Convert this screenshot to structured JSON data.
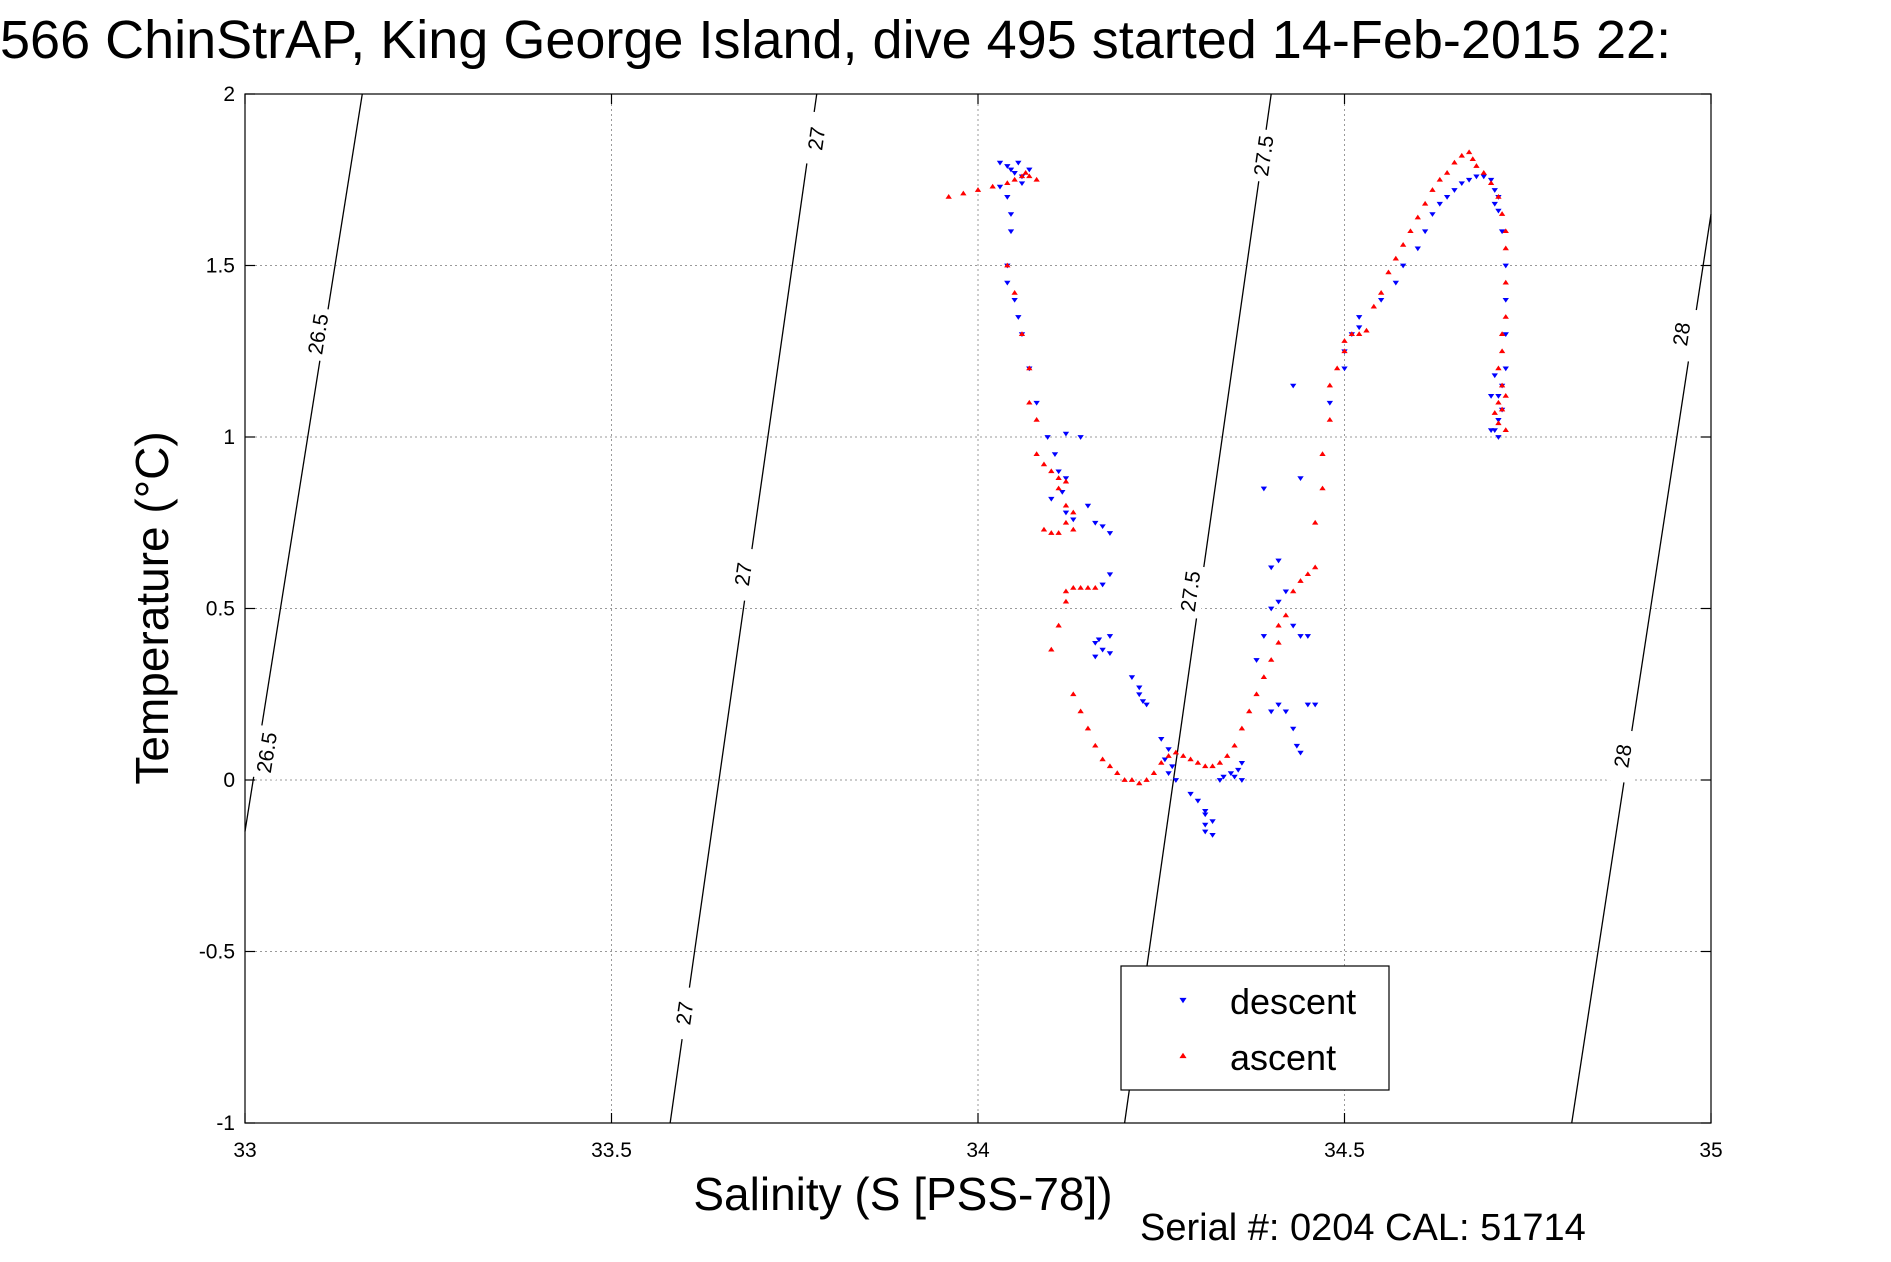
{
  "chart_data": {
    "type": "scatter",
    "title": "566 ChinStrAP, King George Island, dive 495 started 14-Feb-2015 22:",
    "xlabel": "Salinity (S [PSS-78])",
    "ylabel": "Temperature (°C)",
    "xlim": [
      33,
      35
    ],
    "ylim": [
      -1,
      2
    ],
    "x_ticks": [
      33,
      33.5,
      34,
      34.5,
      35
    ],
    "x_tick_labels": [
      "33",
      "33.5",
      "34",
      "34.5",
      "35"
    ],
    "y_ticks": [
      -1,
      -0.5,
      0,
      0.5,
      1,
      1.5,
      2
    ],
    "y_tick_labels": [
      "-1",
      "-0.5",
      "0",
      "0.5",
      "1",
      "1.5",
      "2"
    ],
    "grid": true,
    "legend": "bottom-center",
    "footer": "Serial #: 0204  CAL: 51714",
    "contours": [
      {
        "label": "26.5",
        "x": [
          33.0,
          33.16
        ],
        "y": [
          -0.15,
          2.0
        ],
        "labels_at": [
          [
            33.03,
            0.08
          ],
          [
            33.1,
            1.3
          ]
        ]
      },
      {
        "label": "27",
        "x": [
          33.58,
          33.78
        ],
        "y": [
          -1.0,
          2.0
        ],
        "labels_at": [
          [
            33.6,
            -0.68
          ],
          [
            33.68,
            0.6
          ],
          [
            33.78,
            1.87
          ]
        ]
      },
      {
        "label": "27.5",
        "x": [
          34.2,
          34.4
        ],
        "y": [
          -1.0,
          2.0
        ],
        "labels_at": [
          [
            34.29,
            0.55
          ],
          [
            34.39,
            1.82
          ]
        ]
      },
      {
        "label": "28",
        "x": [
          34.81,
          35.0
        ],
        "y": [
          -1.0,
          1.65
        ],
        "labels_at": [
          [
            34.88,
            0.07
          ],
          [
            34.96,
            1.3
          ]
        ]
      }
    ],
    "series": [
      {
        "name": "descent",
        "color": "#0000ff",
        "marker": "triangle-down",
        "points": [
          [
            34.03,
            1.8
          ],
          [
            34.04,
            1.79
          ],
          [
            34.05,
            1.77
          ],
          [
            34.06,
            1.76
          ],
          [
            34.06,
            1.74
          ],
          [
            34.045,
            1.78
          ],
          [
            34.055,
            1.8
          ],
          [
            34.07,
            1.78
          ],
          [
            34.03,
            1.73
          ],
          [
            34.04,
            1.7
          ],
          [
            34.045,
            1.65
          ],
          [
            34.045,
            1.6
          ],
          [
            34.04,
            1.5
          ],
          [
            34.04,
            1.45
          ],
          [
            34.05,
            1.4
          ],
          [
            34.055,
            1.35
          ],
          [
            34.06,
            1.3
          ],
          [
            34.07,
            1.2
          ],
          [
            34.08,
            1.1
          ],
          [
            34.095,
            1.0
          ],
          [
            34.105,
            0.95
          ],
          [
            34.11,
            0.9
          ],
          [
            34.12,
            0.88
          ],
          [
            34.115,
            0.84
          ],
          [
            34.1,
            0.82
          ],
          [
            34.12,
            0.78
          ],
          [
            34.13,
            0.76
          ],
          [
            34.15,
            0.8
          ],
          [
            34.16,
            0.75
          ],
          [
            34.17,
            0.74
          ],
          [
            34.14,
            1.0
          ],
          [
            34.12,
            1.01
          ],
          [
            34.18,
            0.72
          ],
          [
            34.18,
            0.6
          ],
          [
            34.17,
            0.57
          ],
          [
            34.16,
            0.4
          ],
          [
            34.17,
            0.38
          ],
          [
            34.18,
            0.37
          ],
          [
            34.16,
            0.36
          ],
          [
            34.165,
            0.41
          ],
          [
            34.18,
            0.42
          ],
          [
            34.21,
            0.3
          ],
          [
            34.22,
            0.27
          ],
          [
            34.225,
            0.23
          ],
          [
            34.23,
            0.22
          ],
          [
            34.22,
            0.25
          ],
          [
            34.25,
            0.12
          ],
          [
            34.26,
            0.09
          ],
          [
            34.255,
            0.06
          ],
          [
            34.265,
            0.04
          ],
          [
            34.27,
            0.0
          ],
          [
            34.26,
            0.02
          ],
          [
            34.29,
            -0.04
          ],
          [
            34.3,
            -0.06
          ],
          [
            34.31,
            -0.1
          ],
          [
            34.31,
            -0.13
          ],
          [
            34.31,
            -0.15
          ],
          [
            34.32,
            -0.16
          ],
          [
            34.32,
            -0.12
          ],
          [
            34.31,
            -0.09
          ],
          [
            34.33,
            0.0
          ],
          [
            34.335,
            0.01
          ],
          [
            34.345,
            0.02
          ],
          [
            34.35,
            0.01
          ],
          [
            34.355,
            0.03
          ],
          [
            34.36,
            0.0
          ],
          [
            34.36,
            0.05
          ],
          [
            34.4,
            0.2
          ],
          [
            34.41,
            0.22
          ],
          [
            34.42,
            0.2
          ],
          [
            34.43,
            0.15
          ],
          [
            34.435,
            0.1
          ],
          [
            34.44,
            0.08
          ],
          [
            34.45,
            0.22
          ],
          [
            34.46,
            0.22
          ],
          [
            34.4,
            0.5
          ],
          [
            34.41,
            0.52
          ],
          [
            34.42,
            0.55
          ],
          [
            34.43,
            0.45
          ],
          [
            34.44,
            0.42
          ],
          [
            34.45,
            0.42
          ],
          [
            34.39,
            0.42
          ],
          [
            34.38,
            0.35
          ],
          [
            34.4,
            0.62
          ],
          [
            34.41,
            0.64
          ],
          [
            34.39,
            0.85
          ],
          [
            34.44,
            0.88
          ],
          [
            34.43,
            1.15
          ],
          [
            34.48,
            1.1
          ],
          [
            34.5,
            1.2
          ],
          [
            34.5,
            1.25
          ],
          [
            34.51,
            1.3
          ],
          [
            34.52,
            1.35
          ],
          [
            34.52,
            1.32
          ],
          [
            34.55,
            1.4
          ],
          [
            34.57,
            1.45
          ],
          [
            34.58,
            1.5
          ],
          [
            34.6,
            1.55
          ],
          [
            34.61,
            1.6
          ],
          [
            34.62,
            1.65
          ],
          [
            34.63,
            1.68
          ],
          [
            34.64,
            1.7
          ],
          [
            34.65,
            1.72
          ],
          [
            34.66,
            1.74
          ],
          [
            34.67,
            1.75
          ],
          [
            34.68,
            1.76
          ],
          [
            34.69,
            1.76
          ],
          [
            34.7,
            1.75
          ],
          [
            34.705,
            1.72
          ],
          [
            34.71,
            1.7
          ],
          [
            34.705,
            1.68
          ],
          [
            34.71,
            1.66
          ],
          [
            34.715,
            1.6
          ],
          [
            34.72,
            1.5
          ],
          [
            34.72,
            1.4
          ],
          [
            34.72,
            1.3
          ],
          [
            34.72,
            1.2
          ],
          [
            34.715,
            1.15
          ],
          [
            34.71,
            1.12
          ],
          [
            34.715,
            1.08
          ],
          [
            34.71,
            1.05
          ],
          [
            34.705,
            1.02
          ],
          [
            34.71,
            1.0
          ],
          [
            34.7,
            1.02
          ],
          [
            34.7,
            1.12
          ],
          [
            34.705,
            1.18
          ]
        ]
      },
      {
        "name": "ascent",
        "color": "#ff0000",
        "marker": "triangle-up",
        "points": [
          [
            33.96,
            1.7
          ],
          [
            33.98,
            1.71
          ],
          [
            34.0,
            1.72
          ],
          [
            34.02,
            1.73
          ],
          [
            34.04,
            1.74
          ],
          [
            34.05,
            1.75
          ],
          [
            34.06,
            1.76
          ],
          [
            34.065,
            1.77
          ],
          [
            34.07,
            1.76
          ],
          [
            34.08,
            1.75
          ],
          [
            34.04,
            1.5
          ],
          [
            34.05,
            1.42
          ],
          [
            34.06,
            1.3
          ],
          [
            34.07,
            1.2
          ],
          [
            34.07,
            1.1
          ],
          [
            34.08,
            1.05
          ],
          [
            34.08,
            0.95
          ],
          [
            34.09,
            0.92
          ],
          [
            34.1,
            0.9
          ],
          [
            34.11,
            0.88
          ],
          [
            34.12,
            0.87
          ],
          [
            34.11,
            0.85
          ],
          [
            34.12,
            0.8
          ],
          [
            34.13,
            0.78
          ],
          [
            34.12,
            0.75
          ],
          [
            34.11,
            0.72
          ],
          [
            34.1,
            0.72
          ],
          [
            34.09,
            0.73
          ],
          [
            34.13,
            0.73
          ],
          [
            34.12,
            0.55
          ],
          [
            34.13,
            0.56
          ],
          [
            34.14,
            0.56
          ],
          [
            34.15,
            0.56
          ],
          [
            34.16,
            0.56
          ],
          [
            34.12,
            0.52
          ],
          [
            34.11,
            0.45
          ],
          [
            34.1,
            0.38
          ],
          [
            34.13,
            0.25
          ],
          [
            34.14,
            0.2
          ],
          [
            34.15,
            0.15
          ],
          [
            34.16,
            0.1
          ],
          [
            34.17,
            0.06
          ],
          [
            34.18,
            0.04
          ],
          [
            34.19,
            0.02
          ],
          [
            34.2,
            0.0
          ],
          [
            34.21,
            0.0
          ],
          [
            34.22,
            -0.01
          ],
          [
            34.23,
            0.0
          ],
          [
            34.24,
            0.02
          ],
          [
            34.25,
            0.05
          ],
          [
            34.26,
            0.07
          ],
          [
            34.27,
            0.08
          ],
          [
            34.28,
            0.07
          ],
          [
            34.29,
            0.06
          ],
          [
            34.3,
            0.05
          ],
          [
            34.31,
            0.04
          ],
          [
            34.32,
            0.04
          ],
          [
            34.33,
            0.05
          ],
          [
            34.34,
            0.07
          ],
          [
            34.35,
            0.1
          ],
          [
            34.36,
            0.15
          ],
          [
            34.37,
            0.2
          ],
          [
            34.38,
            0.25
          ],
          [
            34.39,
            0.3
          ],
          [
            34.4,
            0.35
          ],
          [
            34.41,
            0.4
          ],
          [
            34.41,
            0.45
          ],
          [
            34.42,
            0.48
          ],
          [
            34.43,
            0.55
          ],
          [
            34.44,
            0.58
          ],
          [
            34.45,
            0.6
          ],
          [
            34.46,
            0.62
          ],
          [
            34.46,
            0.75
          ],
          [
            34.47,
            0.85
          ],
          [
            34.47,
            0.95
          ],
          [
            34.48,
            1.05
          ],
          [
            34.48,
            1.15
          ],
          [
            34.49,
            1.2
          ],
          [
            34.5,
            1.25
          ],
          [
            34.5,
            1.28
          ],
          [
            34.51,
            1.3
          ],
          [
            34.52,
            1.3
          ],
          [
            34.53,
            1.31
          ],
          [
            34.54,
            1.38
          ],
          [
            34.55,
            1.42
          ],
          [
            34.56,
            1.48
          ],
          [
            34.57,
            1.52
          ],
          [
            34.58,
            1.56
          ],
          [
            34.59,
            1.6
          ],
          [
            34.6,
            1.64
          ],
          [
            34.61,
            1.68
          ],
          [
            34.62,
            1.72
          ],
          [
            34.63,
            1.75
          ],
          [
            34.64,
            1.77
          ],
          [
            34.65,
            1.8
          ],
          [
            34.66,
            1.82
          ],
          [
            34.67,
            1.83
          ],
          [
            34.675,
            1.81
          ],
          [
            34.68,
            1.79
          ],
          [
            34.69,
            1.77
          ],
          [
            34.7,
            1.74
          ],
          [
            34.71,
            1.7
          ],
          [
            34.715,
            1.65
          ],
          [
            34.72,
            1.6
          ],
          [
            34.72,
            1.55
          ],
          [
            34.72,
            1.45
          ],
          [
            34.72,
            1.35
          ],
          [
            34.715,
            1.3
          ],
          [
            34.715,
            1.25
          ],
          [
            34.71,
            1.2
          ],
          [
            34.715,
            1.15
          ],
          [
            34.71,
            1.1
          ],
          [
            34.705,
            1.07
          ],
          [
            34.71,
            1.04
          ],
          [
            34.715,
            1.08
          ],
          [
            34.72,
            1.12
          ],
          [
            34.72,
            1.02
          ]
        ]
      }
    ]
  }
}
